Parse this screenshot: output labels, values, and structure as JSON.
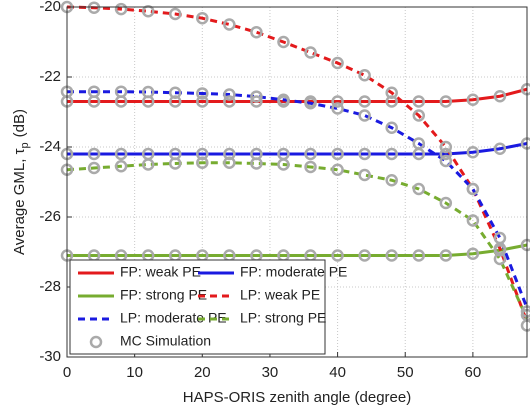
{
  "chart_data": {
    "type": "line",
    "xlabel": "HAPS-ORIS zenith angle (degree)",
    "ylabel": "Average GML, τ",
    "ylabel_sub": "p",
    "ylabel_unit": "(dB)",
    "x": [
      0,
      4,
      8,
      12,
      16,
      20,
      24,
      28,
      32,
      36,
      40,
      44,
      48,
      52,
      56,
      60,
      64,
      68
    ],
    "xlim": [
      0,
      68
    ],
    "xticks": [
      0,
      10,
      20,
      30,
      40,
      50,
      60
    ],
    "ylim": [
      -30,
      -20
    ],
    "yticks": [
      -30,
      -28,
      -26,
      -24,
      -22,
      -20
    ],
    "grid": true,
    "legend": "lower left",
    "series": [
      {
        "name": "FP: weak PE",
        "color": "#e31a1c",
        "linestyle": "solid",
        "values": [
          -22.7,
          -22.7,
          -22.7,
          -22.7,
          -22.7,
          -22.7,
          -22.7,
          -22.7,
          -22.7,
          -22.7,
          -22.7,
          -22.7,
          -22.7,
          -22.7,
          -22.7,
          -22.65,
          -22.55,
          -22.35
        ]
      },
      {
        "name": "FP: moderate PE",
        "color": "#1a1ae0",
        "linestyle": "solid",
        "values": [
          -24.2,
          -24.2,
          -24.2,
          -24.2,
          -24.2,
          -24.2,
          -24.2,
          -24.2,
          -24.2,
          -24.2,
          -24.2,
          -24.2,
          -24.2,
          -24.2,
          -24.2,
          -24.15,
          -24.05,
          -23.9
        ]
      },
      {
        "name": "FP: strong PE",
        "color": "#77ac30",
        "linestyle": "solid",
        "values": [
          -27.1,
          -27.1,
          -27.1,
          -27.1,
          -27.1,
          -27.1,
          -27.1,
          -27.1,
          -27.1,
          -27.1,
          -27.1,
          -27.1,
          -27.1,
          -27.1,
          -27.1,
          -27.05,
          -26.95,
          -26.8
        ]
      },
      {
        "name": "LP: weak PE",
        "color": "#e31a1c",
        "linestyle": "dashed",
        "values": [
          -20,
          -20.02,
          -20.06,
          -20.12,
          -20.2,
          -20.32,
          -20.5,
          -20.72,
          -21.0,
          -21.3,
          -21.6,
          -21.95,
          -22.45,
          -23.1,
          -24.0,
          -25.2,
          -26.9,
          -29.0
        ]
      },
      {
        "name": "LP: moderate PE",
        "color": "#1a1ae0",
        "linestyle": "dashed",
        "values": [
          -22.42,
          -22.42,
          -22.42,
          -22.43,
          -22.45,
          -22.47,
          -22.5,
          -22.56,
          -22.65,
          -22.75,
          -22.9,
          -23.1,
          -23.45,
          -23.9,
          -24.4,
          -25.2,
          -26.6,
          -28.6
        ]
      },
      {
        "name": "LP: strong PE",
        "color": "#77ac30",
        "linestyle": "dashed",
        "values": [
          -24.65,
          -24.6,
          -24.55,
          -24.5,
          -24.47,
          -24.45,
          -24.45,
          -24.47,
          -24.5,
          -24.57,
          -24.65,
          -24.8,
          -24.95,
          -25.2,
          -25.6,
          -26.1,
          -27.2,
          -28.9
        ]
      },
      {
        "name": "MC Simulation",
        "color": "#aaaaaa",
        "marker": "circle",
        "values": [
          [
            -22.7,
            -22.7,
            -22.7,
            -22.7,
            -22.7,
            -22.7,
            -22.7,
            -22.7,
            -22.7,
            -22.7,
            -22.7,
            -22.7,
            -22.7,
            -22.7,
            -22.7,
            -22.65,
            -22.55,
            -22.35
          ],
          [
            -24.2,
            -24.2,
            -24.2,
            -24.2,
            -24.2,
            -24.2,
            -24.2,
            -24.2,
            -24.2,
            -24.2,
            -24.2,
            -24.2,
            -24.2,
            -24.2,
            -24.2,
            -24.15,
            -24.05,
            -23.9
          ],
          [
            -27.1,
            -27.1,
            -27.1,
            -27.1,
            -27.1,
            -27.1,
            -27.1,
            -27.1,
            -27.1,
            -27.1,
            -27.1,
            -27.1,
            -27.1,
            -27.1,
            -27.1,
            -27.05,
            -26.95,
            -26.8
          ],
          [
            -20,
            -20.02,
            -20.06,
            -20.12,
            -20.2,
            -20.32,
            -20.5,
            -20.72,
            -21.0,
            -21.3,
            -21.6,
            -21.95,
            -22.45,
            -23.1,
            -24.0,
            -25.2,
            -26.9,
            -28.8
          ],
          [
            -22.42,
            -22.42,
            -22.42,
            -22.43,
            -22.45,
            -22.47,
            -22.5,
            -22.56,
            -22.65,
            -22.75,
            -22.9,
            -23.1,
            -23.45,
            -23.9,
            -24.4,
            -25.2,
            -26.6,
            -28.7
          ],
          [
            -24.65,
            -24.6,
            -24.55,
            -24.5,
            -24.47,
            -24.45,
            -24.45,
            -24.47,
            -24.5,
            -24.57,
            -24.65,
            -24.8,
            -24.95,
            -25.2,
            -25.6,
            -26.1,
            -27.2,
            -29.1
          ]
        ]
      }
    ]
  }
}
